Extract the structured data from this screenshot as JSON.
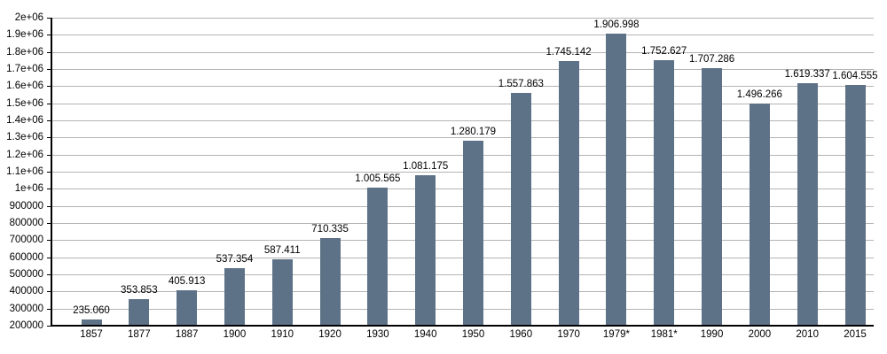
{
  "chart_data": {
    "type": "bar",
    "title": "",
    "xlabel": "",
    "ylabel": "",
    "categories": [
      "1857",
      "1877",
      "1887",
      "1900",
      "1910",
      "1920",
      "1930",
      "1940",
      "1950",
      "1960",
      "1970",
      "1979*",
      "1981*",
      "1990",
      "2000",
      "2010",
      "2015"
    ],
    "values": [
      235060,
      353853,
      405913,
      537354,
      587411,
      710335,
      1005565,
      1081175,
      1280179,
      1557863,
      1745142,
      1906998,
      1752627,
      1707286,
      1496266,
      1619337,
      1604555
    ],
    "value_labels": [
      "235.060",
      "353.853",
      "405.913",
      "537.354",
      "587.411",
      "710.335",
      "1.005.565",
      "1.081.175",
      "1.280.179",
      "1.557.863",
      "1.745.142",
      "1.906.998",
      "1.752.627",
      "1.707.286",
      "1.496.266",
      "1.619.337",
      "1.604.555"
    ],
    "y_axis": {
      "min": 200000,
      "max": 2000000,
      "step": 100000,
      "tick_labels": [
        "200000",
        "300000",
        "400000",
        "500000",
        "600000",
        "700000",
        "800000",
        "900000",
        "1e+06",
        "1.1e+06",
        "1.2e+06",
        "1.3e+06",
        "1.4e+06",
        "1.5e+06",
        "1.6e+06",
        "1.7e+06",
        "1.8e+06",
        "1.9e+06",
        "2e+06"
      ]
    },
    "grid": true,
    "legend": null,
    "colors": {
      "bar": "#5e7287",
      "grid": "#b4b4b4",
      "axis": "#000000",
      "text": "#000000",
      "background": "#ffffff"
    }
  }
}
